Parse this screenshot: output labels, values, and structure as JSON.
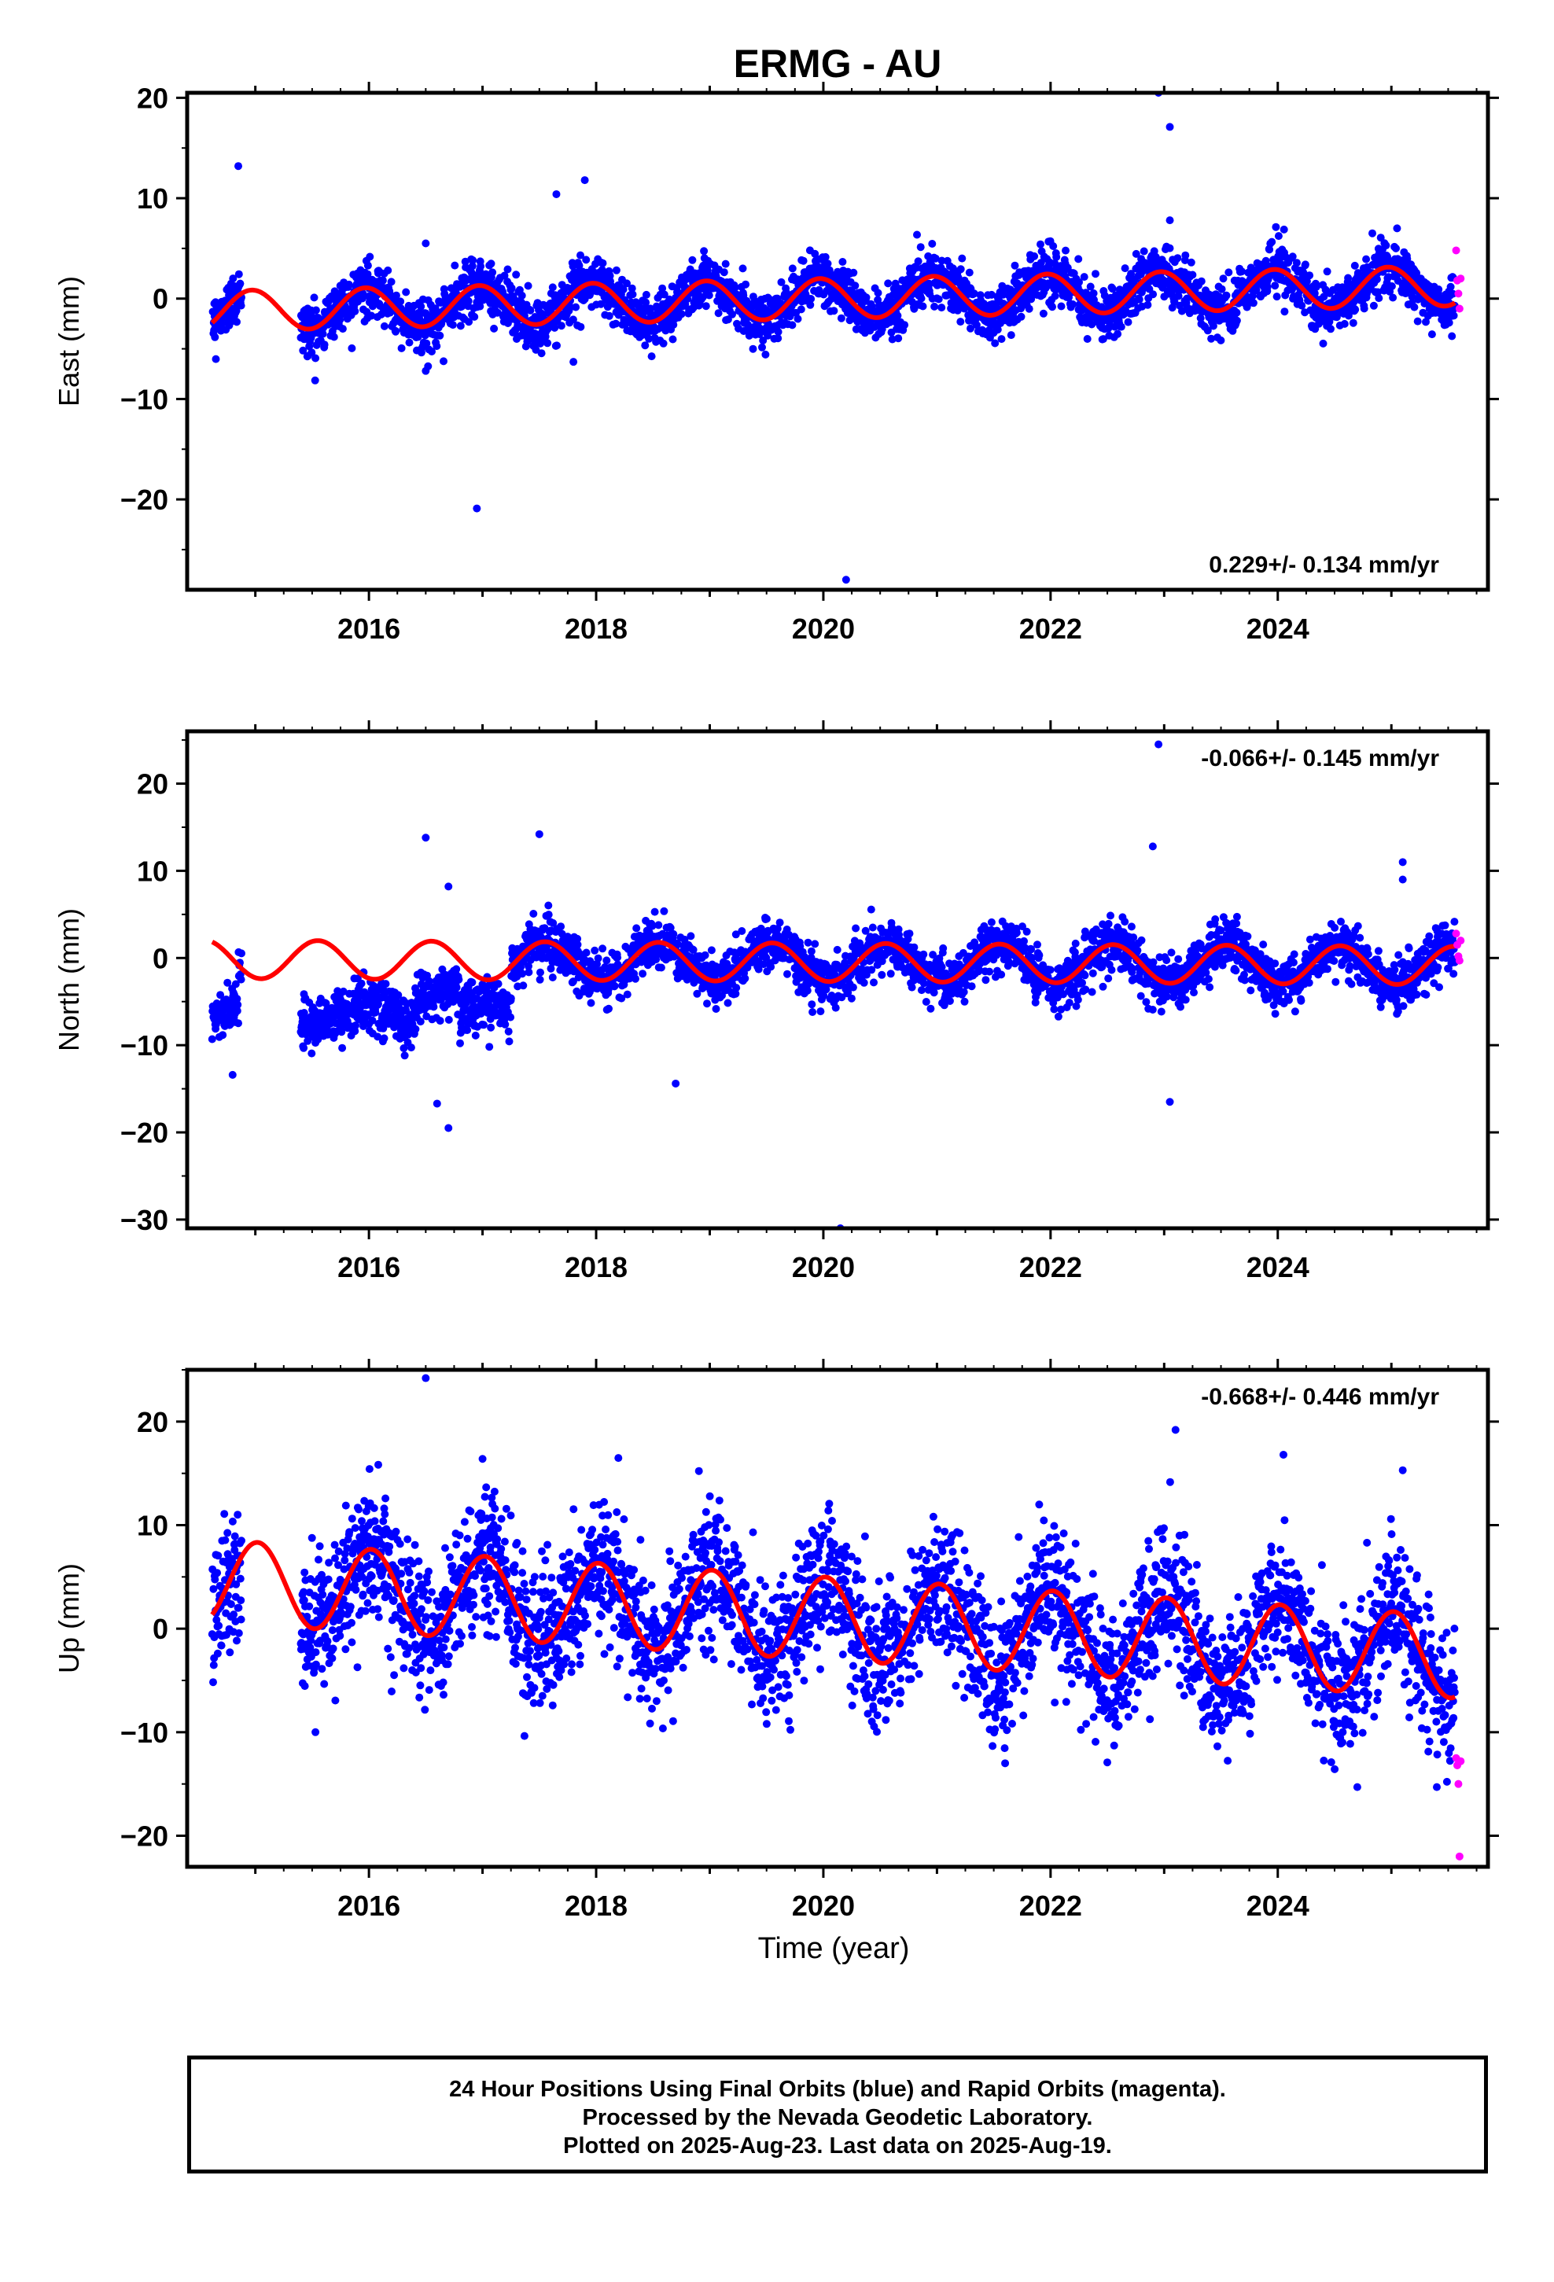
{
  "chart_data": {
    "type": "scatter",
    "title": "ERMG - AU",
    "xlabel": "Time (year)",
    "xlim": [
      2014.4,
      2025.85
    ],
    "x_ticks": [
      "2016",
      "2018",
      "2020",
      "2022",
      "2024"
    ],
    "x_tick_values": [
      2016,
      2018,
      2020,
      2022,
      2024
    ],
    "series_legend": [
      "Final Orbits (blue)",
      "Rapid Orbits (magenta)",
      "Model fit (red)"
    ],
    "colors": {
      "final": "#0000ff",
      "rapid": "#ff00ff",
      "model": "#ff0000"
    },
    "panels": [
      {
        "id": "east",
        "ylabel": "East (mm)",
        "ylim": [
          -29,
          20.5
        ],
        "y_ticks": [
          "20",
          "10",
          "0",
          "−10",
          "−20"
        ],
        "y_tick_values": [
          20,
          10,
          0,
          -10,
          -20
        ],
        "rate_label": "0.229+/- 0.134 mm/yr",
        "rate_position": "bottom-right",
        "model": {
          "intercept_2020": 0.0,
          "trend_mm_per_yr": 0.229,
          "annual_amp": 2.0,
          "annual_peak_year_fraction": 0.97
        },
        "scatter_sigma": 1.3,
        "outliers": [
          [
            2014.85,
            13.2
          ],
          [
            2016.95,
            -20.9
          ],
          [
            2017.65,
            10.4
          ],
          [
            2017.9,
            11.8
          ],
          [
            2016.5,
            5.5
          ],
          [
            2016.5,
            -7.2
          ],
          [
            2017.8,
            -6.3
          ],
          [
            2020.2,
            -28.0
          ],
          [
            2022.95,
            20.5
          ],
          [
            2023.05,
            17.1
          ],
          [
            2023.05,
            7.8
          ],
          [
            2025.05,
            7.0
          ]
        ],
        "rapid_points": [
          [
            2025.57,
            4.8
          ],
          [
            2025.58,
            1.8
          ],
          [
            2025.59,
            0.5
          ],
          [
            2025.6,
            -1.0
          ],
          [
            2025.61,
            2.0
          ]
        ]
      },
      {
        "id": "north",
        "ylabel": "North (mm)",
        "ylim": [
          -31,
          26
        ],
        "y_ticks": [
          "20",
          "10",
          "0",
          "−10",
          "−20",
          "−30"
        ],
        "y_tick_values": [
          20,
          10,
          0,
          -10,
          -20,
          -30
        ],
        "rate_label": "-0.066+/- 0.145 mm/yr",
        "rate_position": "top-right",
        "model": {
          "intercept_2020": -0.5,
          "trend_mm_per_yr": -0.066,
          "annual_amp": 2.2,
          "annual_peak_year_fraction": 0.55
        },
        "scatter_sigma": 1.4,
        "offset_segments": [
          [
            2014.6,
            2014.85,
            -6.0
          ],
          [
            2015.4,
            2016.4,
            -6.5
          ],
          [
            2016.4,
            2016.8,
            -3.5
          ],
          [
            2016.8,
            2017.25,
            -6.5
          ]
        ],
        "outliers": [
          [
            2014.8,
            -13.4
          ],
          [
            2016.5,
            13.8
          ],
          [
            2016.7,
            8.2
          ],
          [
            2016.6,
            -16.7
          ],
          [
            2016.7,
            -19.5
          ],
          [
            2017.5,
            14.2
          ],
          [
            2018.7,
            -14.4
          ],
          [
            2020.15,
            -31.0
          ],
          [
            2022.95,
            24.5
          ],
          [
            2022.9,
            12.8
          ],
          [
            2023.05,
            -16.5
          ],
          [
            2025.1,
            11.0
          ],
          [
            2025.1,
            9.0
          ]
        ],
        "rapid_points": [
          [
            2025.57,
            2.8
          ],
          [
            2025.58,
            1.5
          ],
          [
            2025.59,
            0.2
          ],
          [
            2025.6,
            -0.3
          ],
          [
            2025.61,
            2.0
          ]
        ]
      },
      {
        "id": "up",
        "ylabel": "Up (mm)",
        "ylim": [
          -23,
          25
        ],
        "y_ticks": [
          "20",
          "10",
          "0",
          "−10",
          "−20"
        ],
        "y_tick_values": [
          20,
          10,
          0,
          -10,
          -20
        ],
        "rate_label": "-0.668+/- 0.446 mm/yr",
        "rate_position": "top-right",
        "model": {
          "intercept_2020": 1.0,
          "trend_mm_per_yr": -0.668,
          "annual_amp": 4.0,
          "annual_peak_year_fraction": 0.02
        },
        "scatter_sigma": 3.3,
        "outliers": [
          [
            2016.5,
            24.2
          ],
          [
            2023.1,
            19.2
          ],
          [
            2024.05,
            16.8
          ],
          [
            2025.1,
            15.3
          ],
          [
            2017.0,
            16.4
          ],
          [
            2021.6,
            -13.0
          ],
          [
            2024.7,
            -15.3
          ],
          [
            2025.4,
            -15.3
          ]
        ],
        "rapid_points": [
          [
            2025.57,
            -12.5
          ],
          [
            2025.58,
            -13.2
          ],
          [
            2025.59,
            -15.0
          ],
          [
            2025.6,
            -22.0
          ],
          [
            2025.61,
            -12.8
          ]
        ]
      }
    ],
    "data_start": 2014.62,
    "data_end": 2025.56
  },
  "footer": {
    "line1": "24 Hour Positions Using Final Orbits (blue) and Rapid Orbits (magenta).",
    "line2": "Processed by the Nevada Geodetic Laboratory.",
    "line3": "Plotted on 2025-Aug-23. Last data on 2025-Aug-19."
  }
}
